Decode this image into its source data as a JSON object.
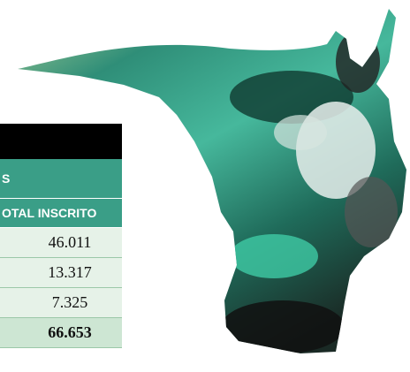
{
  "table": {
    "header_rows": [
      "S",
      "OTAL INSCRITO"
    ],
    "rows": [
      "46.011",
      "13.317",
      "7.325"
    ],
    "total": "66.653"
  }
}
